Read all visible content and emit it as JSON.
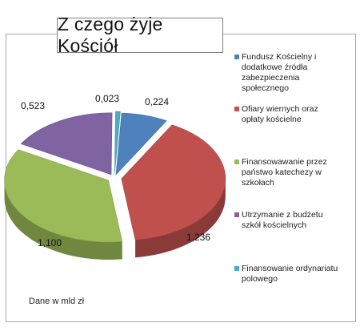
{
  "title": "Z czego żyje Kościół",
  "footnote": "Dane w mld zł",
  "chart_data": {
    "type": "pie",
    "title": "Z czego żyje Kościół",
    "unit_note": "Dane w mld zł",
    "slices": [
      {
        "name": "Fundusz Kościelny i dodatkowe źródła zabezpieczenia społecznego",
        "value": 0.224,
        "label": "0,224",
        "color": "#4f81bd"
      },
      {
        "name": "Ofiary wiernych oraz opłaty kościelne",
        "value": 1.236,
        "label": "1,236",
        "color": "#c0504d"
      },
      {
        "name": "Finansowawanie przez państwo katechezy w szkołach",
        "value": 1.1,
        "label": "1,100",
        "color": "#9bbb59"
      },
      {
        "name": "Utrzymanie z budżetu szkół kościelnych",
        "value": 0.523,
        "label": "0,523",
        "color": "#8064a2"
      },
      {
        "name": "Finansowanie ordynariatu polowego",
        "value": 0.023,
        "label": "0,023",
        "color": "#4bacc6"
      }
    ],
    "legend_position": "right"
  }
}
